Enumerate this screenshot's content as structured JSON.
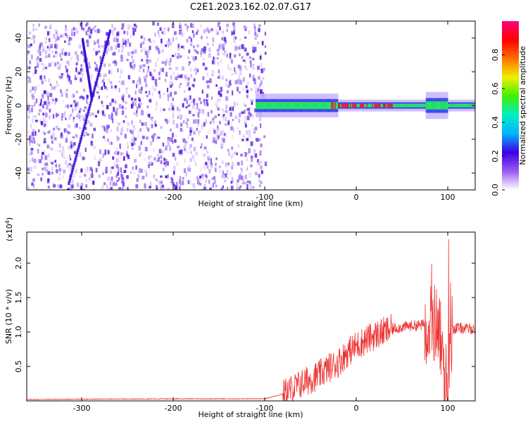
{
  "title": "C2E1.2023.162.02.07.G17",
  "chart_data": [
    {
      "type": "heatmap",
      "xlabel": "Height of straight line (km)",
      "ylabel": "Frequency (Hz)",
      "xlim": [
        -360,
        130
      ],
      "ylim": [
        -50,
        50
      ],
      "xticks": [
        -300,
        -200,
        -100,
        0,
        100
      ],
      "yticks": [
        -40,
        -20,
        0,
        20,
        40
      ],
      "noise_region_x": [
        -360,
        -100
      ],
      "signal_line_y": 0,
      "colorbar": {
        "label": "Normalized spectral amplitude",
        "range": [
          0.0,
          1.0
        ],
        "ticks": [
          "0.0",
          "0.2",
          "0.4",
          "0.6",
          "0.8"
        ],
        "colors": [
          "#ffffff",
          "#9b59f5",
          "#3d00e0",
          "#00b4ff",
          "#00f0c0",
          "#40f000",
          "#f0f000",
          "#ff7000",
          "#ff0000",
          "#ff0080"
        ]
      }
    },
    {
      "type": "line",
      "xlabel": "Height of straight line (km)",
      "ylabel": "SNR (10 * v/v)",
      "ymultiplier": "(x10",
      "ymultiplier_exp": "4",
      "xlim": [
        -360,
        130
      ],
      "ylim": [
        0,
        2.45
      ],
      "xticks": [
        -300,
        -200,
        -100,
        0,
        100
      ],
      "yticks": [
        "0.5",
        "1.0",
        "1.5",
        "2.0"
      ],
      "series": [
        {
          "color": "#ee3333",
          "x": [
            -360,
            -300,
            -200,
            -120,
            -100,
            -80,
            -60,
            -40,
            -30,
            -20,
            -10,
            0,
            10,
            20,
            30,
            40,
            50,
            60,
            70,
            80,
            90,
            95,
            100,
            105,
            110,
            120,
            130
          ],
          "y": [
            0.02,
            0.025,
            0.03,
            0.03,
            0.03,
            0.1,
            0.25,
            0.38,
            0.48,
            0.55,
            0.7,
            0.8,
            0.88,
            0.95,
            1.0,
            1.05,
            1.07,
            1.09,
            1.1,
            1.12,
            1.15,
            0.4,
            0.2,
            1.04,
            1.06,
            1.05,
            1.05
          ]
        }
      ]
    }
  ]
}
